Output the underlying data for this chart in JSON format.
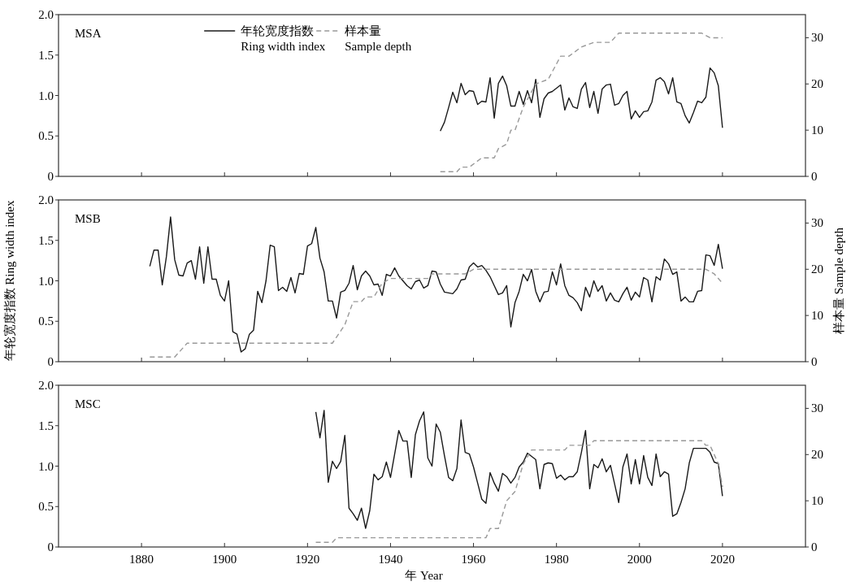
{
  "chart_data": [
    {
      "type": "line",
      "title": "MSA",
      "xlim": [
        1860,
        2040
      ],
      "xticks": [
        1880,
        1900,
        1920,
        1940,
        1960,
        1980,
        2000,
        2020
      ],
      "ylim": [
        0,
        2
      ],
      "yticks": [
        {
          "value": 0,
          "label": "0"
        },
        {
          "value": 0.5,
          "label": "0.5"
        },
        {
          "value": 1,
          "label": "1.0"
        },
        {
          "value": 1.5,
          "label": "1.5"
        },
        {
          "value": 2,
          "label": "2.0"
        }
      ],
      "y2lim": [
        0,
        35
      ],
      "y2ticks": [
        0,
        10,
        20,
        30
      ],
      "tick_labels": "y",
      "legend": "top",
      "series": [
        {
          "name": "年轮宽度指数\nRing width index",
          "color": "#1a1a1a",
          "line_style": "solid",
          "x": [
            1952,
            1953,
            1954,
            1955,
            1956,
            1957,
            1958,
            1959,
            1960,
            1961,
            1962,
            1963,
            1964,
            1965,
            1966,
            1967,
            1968,
            1969,
            1970,
            1971,
            1972,
            1973,
            1974,
            1975,
            1976,
            1977,
            1978,
            1979,
            1980,
            1981,
            1982,
            1983,
            1984,
            1985,
            1986,
            1987,
            1988,
            1989,
            1990,
            1991,
            1992,
            1993,
            1994,
            1995,
            1996,
            1997,
            1998,
            1999,
            2000,
            2001,
            2002,
            2003,
            2004,
            2005,
            2006,
            2007,
            2008,
            2009,
            2010,
            2011,
            2012,
            2013,
            2014,
            2015,
            2016,
            2017,
            2018,
            2019,
            2020
          ],
          "values": [
            0.56,
            0.67,
            0.85,
            1.04,
            0.91,
            1.15,
            1.01,
            1.06,
            1.05,
            0.89,
            0.93,
            0.92,
            1.22,
            0.72,
            1.15,
            1.24,
            1.12,
            0.87,
            0.87,
            1.05,
            0.89,
            1.06,
            0.91,
            1.2,
            0.73,
            0.96,
            1.03,
            1.05,
            1.09,
            1.13,
            0.82,
            0.97,
            0.86,
            0.84,
            1.08,
            1.16,
            0.85,
            1.05,
            0.78,
            1.08,
            1.13,
            1.14,
            0.88,
            0.9,
            1.0,
            1.05,
            0.71,
            0.81,
            0.73,
            0.8,
            0.81,
            0.92,
            1.19,
            1.22,
            1.17,
            1.02,
            1.22,
            0.92,
            0.9,
            0.75,
            0.66,
            0.79,
            0.93,
            0.91,
            0.98,
            1.34,
            1.28,
            1.12,
            0.6
          ]
        },
        {
          "name": "样本量\nSample depth",
          "color": "#999999",
          "line_style": "dashed",
          "axis": "y2",
          "x": [
            1952,
            1956,
            1957,
            1959,
            1962,
            1965,
            1966,
            1968,
            1969,
            1970,
            1972,
            1975,
            1978,
            1981,
            1983,
            1986,
            1989,
            1993,
            1995,
            2015,
            2017,
            2020
          ],
          "values": [
            1,
            1,
            2,
            2,
            4,
            4,
            6,
            7,
            10,
            10,
            15,
            20,
            21,
            26,
            26,
            28,
            29,
            29,
            31,
            31,
            30,
            30
          ]
        }
      ]
    },
    {
      "type": "line",
      "title": "MSB",
      "ylabel": "年轮宽度指数 Ring width index",
      "y2label": "样本量 Sample depth",
      "xlim": [
        1860,
        2040
      ],
      "xticks": [
        1880,
        1900,
        1920,
        1940,
        1960,
        1980,
        2000,
        2020
      ],
      "ylim": [
        0,
        2
      ],
      "yticks": [
        {
          "value": 0,
          "label": "0"
        },
        {
          "value": 0.5,
          "label": "0.5"
        },
        {
          "value": 1,
          "label": "1.0"
        },
        {
          "value": 1.5,
          "label": "1.5"
        },
        {
          "value": 2,
          "label": "2.0"
        }
      ],
      "y2lim": [
        0,
        35
      ],
      "y2ticks": [
        0,
        10,
        20,
        30
      ],
      "tick_labels": "y",
      "series": [
        {
          "color": "#1a1a1a",
          "line_style": "solid",
          "x": [
            1882,
            1883,
            1884,
            1885,
            1886,
            1887,
            1888,
            1889,
            1890,
            1891,
            1892,
            1893,
            1894,
            1895,
            1896,
            1897,
            1898,
            1899,
            1900,
            1901,
            1902,
            1903,
            1904,
            1905,
            1906,
            1907,
            1908,
            1909,
            1910,
            1911,
            1912,
            1913,
            1914,
            1915,
            1916,
            1917,
            1918,
            1919,
            1920,
            1921,
            1922,
            1923,
            1924,
            1925,
            1926,
            1927,
            1928,
            1929,
            1930,
            1931,
            1932,
            1933,
            1934,
            1935,
            1936,
            1937,
            1938,
            1939,
            1940,
            1941,
            1942,
            1943,
            1944,
            1945,
            1946,
            1947,
            1948,
            1949,
            1950,
            1951,
            1952,
            1953,
            1954,
            1955,
            1956,
            1957,
            1958,
            1959,
            1960,
            1961,
            1962,
            1963,
            1964,
            1965,
            1966,
            1967,
            1968,
            1969,
            1970,
            1971,
            1972,
            1973,
            1974,
            1975,
            1976,
            1977,
            1978,
            1979,
            1980,
            1981,
            1982,
            1983,
            1984,
            1985,
            1986,
            1987,
            1988,
            1989,
            1990,
            1991,
            1992,
            1993,
            1994,
            1995,
            1996,
            1997,
            1998,
            1999,
            2000,
            2001,
            2002,
            2003,
            2004,
            2005,
            2006,
            2007,
            2008,
            2009,
            2010,
            2011,
            2012,
            2013,
            2014,
            2015,
            2016,
            2017,
            2018,
            2019,
            2020
          ],
          "values": [
            1.18,
            1.38,
            1.38,
            0.95,
            1.3,
            1.79,
            1.26,
            1.07,
            1.06,
            1.22,
            1.25,
            1.02,
            1.42,
            0.97,
            1.42,
            1.02,
            1.02,
            0.82,
            0.75,
            1.0,
            0.37,
            0.34,
            0.12,
            0.16,
            0.34,
            0.39,
            0.87,
            0.73,
            1.0,
            1.44,
            1.42,
            0.88,
            0.92,
            0.87,
            1.04,
            0.85,
            1.09,
            1.08,
            1.43,
            1.46,
            1.66,
            1.28,
            1.11,
            0.75,
            0.75,
            0.54,
            0.86,
            0.88,
            0.97,
            1.19,
            0.89,
            1.06,
            1.12,
            1.06,
            0.95,
            0.96,
            0.82,
            1.08,
            1.06,
            1.16,
            1.06,
            1.0,
            0.94,
            0.9,
            0.99,
            1.01,
            0.91,
            0.94,
            1.12,
            1.11,
            0.96,
            0.86,
            0.85,
            0.84,
            0.9,
            1.01,
            1.02,
            1.17,
            1.22,
            1.17,
            1.19,
            1.13,
            1.05,
            0.94,
            0.83,
            0.85,
            0.94,
            0.43,
            0.73,
            0.87,
            1.08,
            1.0,
            1.14,
            0.87,
            0.74,
            0.86,
            0.87,
            1.11,
            0.95,
            1.21,
            0.94,
            0.82,
            0.79,
            0.73,
            0.63,
            0.92,
            0.8,
            1.0,
            0.87,
            0.94,
            0.75,
            0.85,
            0.76,
            0.74,
            0.84,
            0.92,
            0.76,
            0.86,
            0.8,
            1.04,
            1.01,
            0.74,
            1.05,
            1.01,
            1.27,
            1.21,
            1.08,
            1.11,
            0.75,
            0.8,
            0.74,
            0.74,
            0.87,
            0.88,
            1.32,
            1.31,
            1.19,
            1.45,
            1.15
          ]
        },
        {
          "color": "#999999",
          "line_style": "dashed",
          "axis": "y2",
          "x": [
            1882,
            1888,
            1891,
            1926,
            1929,
            1931,
            1933,
            1934,
            1936,
            1938,
            1940,
            1949,
            1950,
            1958,
            1960,
            2016,
            2018,
            2020
          ],
          "values": [
            1,
            1,
            4,
            4,
            8,
            13,
            13,
            14,
            14,
            17,
            18,
            18,
            19,
            19,
            20,
            20,
            19,
            17
          ]
        }
      ]
    },
    {
      "type": "line",
      "title": "MSC",
      "xlabel": "年 Year",
      "xlim": [
        1860,
        2040
      ],
      "xticks": [
        1880,
        1900,
        1920,
        1940,
        1960,
        1980,
        2000,
        2020
      ],
      "ylim": [
        0,
        2
      ],
      "yticks": [
        {
          "value": 0,
          "label": "0"
        },
        {
          "value": 0.5,
          "label": "0.5"
        },
        {
          "value": 1,
          "label": "1.0"
        },
        {
          "value": 1.5,
          "label": "1.5"
        },
        {
          "value": 2,
          "label": "2.0"
        }
      ],
      "y2lim": [
        0,
        35
      ],
      "y2ticks": [
        0,
        10,
        20,
        30
      ],
      "series": [
        {
          "color": "#1a1a1a",
          "line_style": "solid",
          "x": [
            1922,
            1923,
            1924,
            1925,
            1926,
            1927,
            1928,
            1929,
            1930,
            1931,
            1932,
            1933,
            1934,
            1935,
            1936,
            1937,
            1938,
            1939,
            1940,
            1941,
            1942,
            1943,
            1944,
            1945,
            1946,
            1947,
            1948,
            1949,
            1950,
            1951,
            1952,
            1953,
            1954,
            1955,
            1956,
            1957,
            1958,
            1959,
            1960,
            1961,
            1962,
            1963,
            1964,
            1965,
            1966,
            1967,
            1968,
            1969,
            1970,
            1971,
            1972,
            1973,
            1974,
            1975,
            1976,
            1977,
            1978,
            1979,
            1980,
            1981,
            1982,
            1983,
            1984,
            1985,
            1986,
            1987,
            1988,
            1989,
            1990,
            1991,
            1992,
            1993,
            1994,
            1995,
            1996,
            1997,
            1998,
            1999,
            2000,
            2001,
            2002,
            2003,
            2004,
            2005,
            2006,
            2007,
            2008,
            2009,
            2010,
            2011,
            2012,
            2013,
            2014,
            2015,
            2016,
            2017,
            2018,
            2019,
            2020
          ],
          "values": [
            1.67,
            1.35,
            1.69,
            0.8,
            1.06,
            0.97,
            1.06,
            1.38,
            0.48,
            0.41,
            0.33,
            0.48,
            0.23,
            0.45,
            0.9,
            0.83,
            0.87,
            1.05,
            0.86,
            1.15,
            1.44,
            1.31,
            1.31,
            0.86,
            1.39,
            1.56,
            1.67,
            1.1,
            1.0,
            1.52,
            1.42,
            1.13,
            0.86,
            0.82,
            0.97,
            1.57,
            1.17,
            1.15,
            0.99,
            0.79,
            0.59,
            0.54,
            0.92,
            0.79,
            0.69,
            0.91,
            0.87,
            0.79,
            0.86,
            0.99,
            1.05,
            1.16,
            1.12,
            1.08,
            0.72,
            1.02,
            1.04,
            1.03,
            0.85,
            0.89,
            0.83,
            0.87,
            0.87,
            0.93,
            1.17,
            1.44,
            0.72,
            1.02,
            0.98,
            1.09,
            0.93,
            1.01,
            0.78,
            0.55,
            0.99,
            1.15,
            0.78,
            1.08,
            0.78,
            1.13,
            0.86,
            0.76,
            1.15,
            0.87,
            0.93,
            0.9,
            0.38,
            0.41,
            0.55,
            0.72,
            1.04,
            1.22,
            1.22,
            1.22,
            1.22,
            1.17,
            1.05,
            1.03,
            0.63
          ]
        },
        {
          "color": "#999999",
          "line_style": "dashed",
          "axis": "y2",
          "x": [
            1922,
            1926,
            1927,
            1963,
            1964,
            1966,
            1968,
            1970,
            1972,
            1974,
            1982,
            1983,
            1988,
            1989,
            2015,
            2016,
            2017,
            2019,
            2020
          ],
          "values": [
            1,
            1,
            2,
            2,
            4,
            4,
            10,
            12,
            18,
            21,
            21,
            22,
            22,
            23,
            23,
            22,
            22,
            18,
            13
          ]
        }
      ]
    }
  ]
}
